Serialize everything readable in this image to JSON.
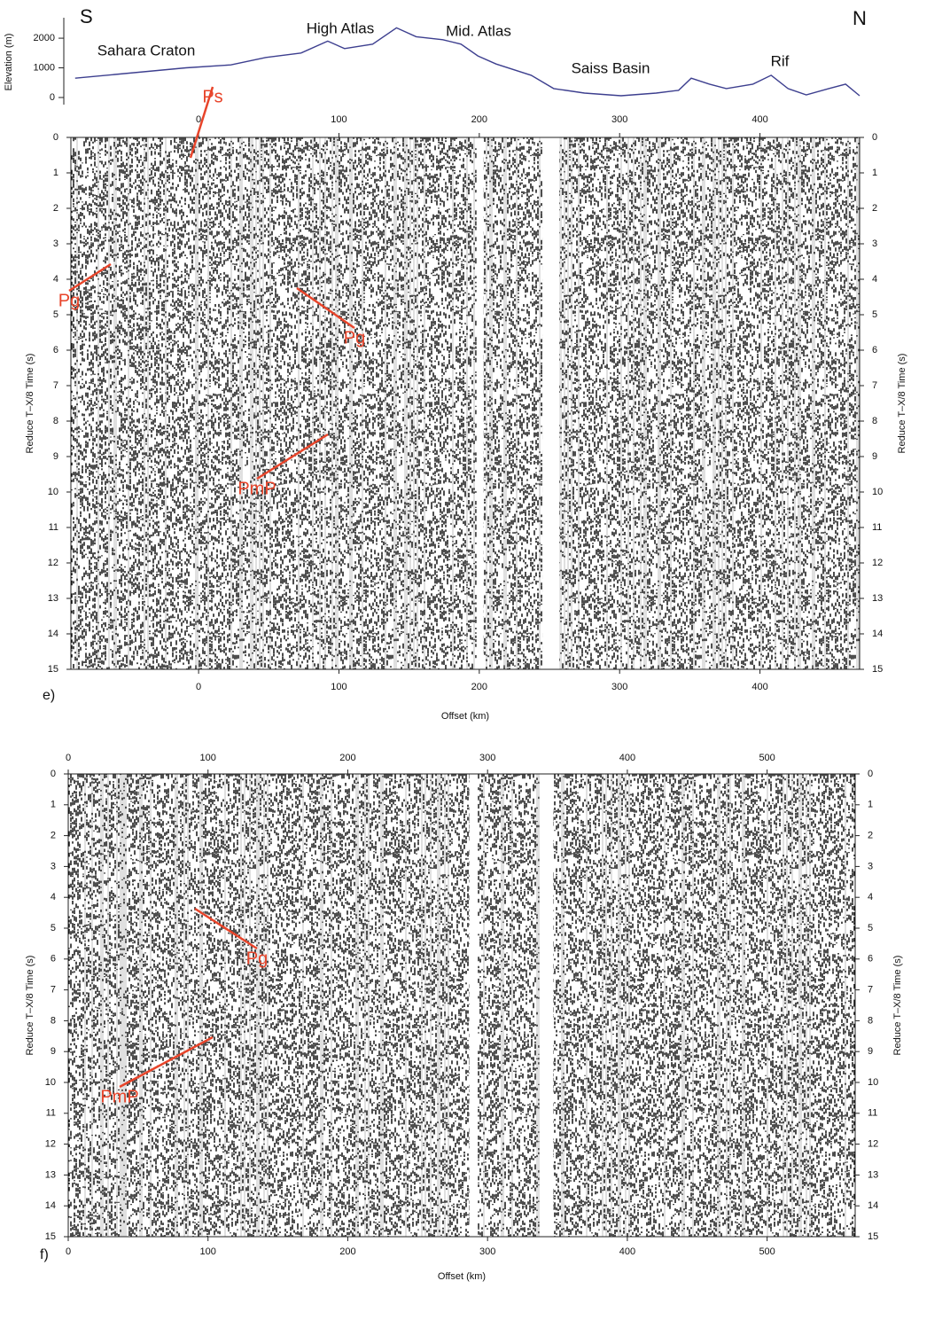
{
  "chart_data": [
    {
      "type": "line",
      "ylabel": "Elevation (m)",
      "annotations": [
        "S",
        "N",
        "Sahara Craton",
        "High Atlas",
        "Mid. Atlas",
        "Saiss Basin",
        "Rif"
      ],
      "x": [
        -88,
        -9,
        23,
        48,
        73,
        92,
        104,
        124,
        141,
        155,
        174,
        187,
        199,
        212,
        237,
        253,
        275,
        301,
        326,
        342,
        351,
        364,
        376,
        395,
        408,
        420,
        433,
        449,
        461,
        471
      ],
      "values": [
        650,
        1000,
        1100,
        1350,
        1500,
        1900,
        1650,
        1800,
        2350,
        2050,
        1950,
        1800,
        1400,
        1130,
        750,
        300,
        150,
        60,
        150,
        240,
        650,
        450,
        300,
        450,
        750,
        300,
        90,
        300,
        450,
        60
      ],
      "color": "#3d3f8f",
      "xlim": [
        -91,
        471
      ],
      "ylim": [
        -240,
        2690
      ],
      "yticks": [
        0,
        1000,
        2000
      ]
    },
    {
      "type": "seismic",
      "panel": "e)",
      "xlabel": "Offset (km)",
      "ylabel": "Reduce T–X/8 Time (s)",
      "xlim": [
        -91,
        471
      ],
      "xticks": [
        0,
        100,
        200,
        300,
        400
      ],
      "ylim": [
        15,
        0
      ],
      "yticks": [
        0,
        1,
        2,
        3,
        4,
        5,
        6,
        7,
        8,
        9,
        10,
        11,
        12,
        13,
        14,
        15
      ],
      "gaps": [
        [
          198,
          203
        ],
        [
          245,
          257
        ]
      ],
      "annotations": [
        "Ps",
        "Pg",
        "Pg",
        "PmP"
      ],
      "annotation_color": "#e8442a"
    },
    {
      "type": "seismic",
      "panel": "f)",
      "xlabel": "Offset (km)",
      "ylabel": "Reduce T–X/8 Time (s)",
      "xlim": [
        0,
        563
      ],
      "xticks": [
        0,
        100,
        200,
        300,
        400,
        500
      ],
      "ylim": [
        15,
        0
      ],
      "yticks": [
        0,
        1,
        2,
        3,
        4,
        5,
        6,
        7,
        8,
        9,
        10,
        11,
        12,
        13,
        14,
        15
      ],
      "gaps": [
        [
          287,
          293
        ],
        [
          337,
          347
        ]
      ],
      "annotations": [
        "Pg",
        "PmP"
      ],
      "annotation_color": "#e8442a"
    }
  ]
}
